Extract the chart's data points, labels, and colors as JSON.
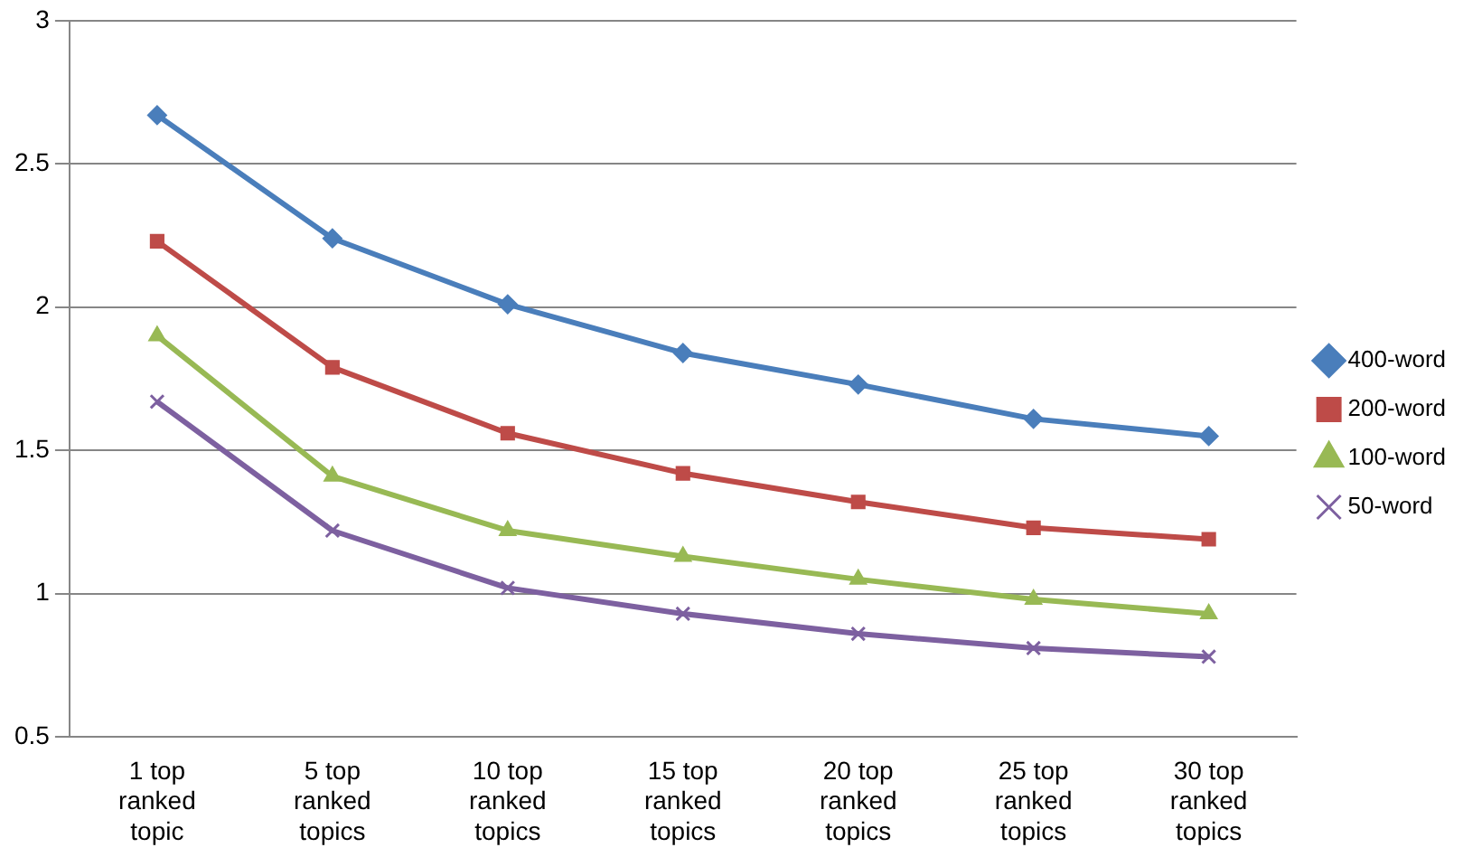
{
  "chart_data": {
    "type": "line",
    "categories": [
      "1 top ranked topic",
      "5 top ranked topics",
      "10 top ranked topics",
      "15 top ranked topics",
      "20 top ranked topics",
      "25 top ranked topics",
      "30 top ranked topics"
    ],
    "series": [
      {
        "name": "400-word",
        "color": "#4a7ebb",
        "marker": "diamond",
        "values": [
          2.67,
          2.24,
          2.01,
          1.84,
          1.73,
          1.61,
          1.55
        ]
      },
      {
        "name": "200-word",
        "color": "#be4b48",
        "marker": "square",
        "values": [
          2.23,
          1.79,
          1.56,
          1.42,
          1.32,
          1.23,
          1.19
        ]
      },
      {
        "name": "100-word",
        "color": "#98b954",
        "marker": "triangle",
        "values": [
          1.9,
          1.41,
          1.22,
          1.13,
          1.05,
          0.98,
          0.93
        ]
      },
      {
        "name": "50-word",
        "color": "#7d60a0",
        "marker": "cross",
        "values": [
          1.67,
          1.22,
          1.02,
          0.93,
          0.86,
          0.81,
          0.78
        ]
      }
    ],
    "ylim": [
      0.5,
      3
    ],
    "yticks": [
      0.5,
      1,
      1.5,
      2,
      2.5,
      3
    ],
    "grid": "y",
    "legend": "right",
    "line_style": "solid"
  }
}
